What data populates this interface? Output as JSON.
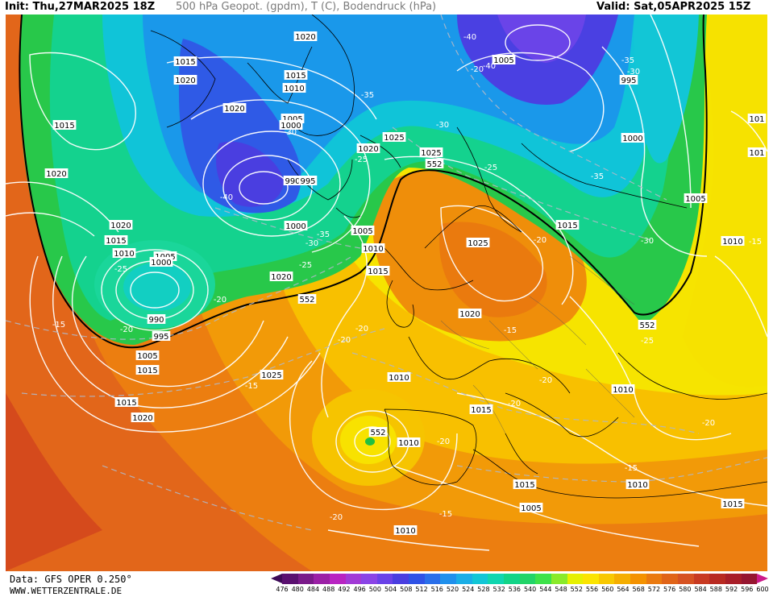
{
  "header": {
    "init": "Init: Thu,27MAR2025 18Z",
    "title": "500 hPa Geopot. (gpdm), T (C), Bodendruck (hPa)",
    "valid": "Valid: Sat,05APR2025 15Z"
  },
  "footer": {
    "data_source": "Data: GFS OPER 0.250°",
    "website": "WWW.WETTERZENTRALE.DE"
  },
  "legend": {
    "ticks": [
      "476",
      "480",
      "484",
      "488",
      "492",
      "496",
      "500",
      "504",
      "508",
      "512",
      "516",
      "520",
      "524",
      "528",
      "532",
      "536",
      "540",
      "544",
      "548",
      "552",
      "556",
      "560",
      "564",
      "568",
      "572",
      "576",
      "580",
      "584",
      "588",
      "592",
      "596",
      "600"
    ],
    "colors": [
      "#5a1070",
      "#7a1a8a",
      "#9b20a6",
      "#b824c2",
      "#a13ad6",
      "#8a44e6",
      "#6a42e8",
      "#4a3ee0",
      "#2f52e6",
      "#2a6fea",
      "#1f90ec",
      "#1aaee6",
      "#12c6d6",
      "#10d6b0",
      "#12d488",
      "#22d468",
      "#3ee24a",
      "#8aea2a",
      "#e6f000",
      "#fbe400",
      "#f8c800",
      "#f5ae00",
      "#f49200",
      "#ea7a10",
      "#e06418",
      "#d65222",
      "#c83a22",
      "#b82a22",
      "#a81e28",
      "#961630"
    ],
    "arrow_left_color": "#3d0a57",
    "arrow_right_color": "#cc1a8a"
  },
  "map": {
    "pressure_labels": [
      {
        "text": "1020"
      },
      {
        "text": "1015"
      },
      {
        "text": "1020"
      },
      {
        "text": "1015"
      },
      {
        "text": "1020"
      },
      {
        "text": "1020"
      },
      {
        "text": "1015"
      },
      {
        "text": "1020"
      },
      {
        "text": "1010"
      },
      {
        "text": "1015"
      },
      {
        "text": "1005"
      },
      {
        "text": "1000"
      },
      {
        "text": "1005"
      },
      {
        "text": "1000"
      },
      {
        "text": "990"
      },
      {
        "text": "995"
      },
      {
        "text": "990"
      },
      {
        "text": "995"
      },
      {
        "text": "1000"
      },
      {
        "text": "1005"
      },
      {
        "text": "1010"
      },
      {
        "text": "1015"
      },
      {
        "text": "1020"
      },
      {
        "text": "1025"
      },
      {
        "text": "1025"
      },
      {
        "text": "1025"
      },
      {
        "text": "1015"
      },
      {
        "text": "1020"
      },
      {
        "text": "1010"
      },
      {
        "text": "1005"
      },
      {
        "text": "1010"
      },
      {
        "text": "1015"
      },
      {
        "text": "1020"
      },
      {
        "text": "1005"
      },
      {
        "text": "995"
      },
      {
        "text": "1000"
      },
      {
        "text": "1005"
      },
      {
        "text": "1010"
      },
      {
        "text": "1015"
      },
      {
        "text": "1010"
      },
      {
        "text": "1015"
      },
      {
        "text": "1010"
      },
      {
        "text": "1005"
      },
      {
        "text": "1010"
      },
      {
        "text": "1015"
      },
      {
        "text": "1010"
      },
      {
        "text": "1010"
      },
      {
        "text": "101"
      },
      {
        "text": "101"
      },
      {
        "text": "1015"
      },
      {
        "text": "1025"
      },
      {
        "text": "1020"
      }
    ],
    "temp_labels": [
      {
        "text": "-40"
      },
      {
        "text": "-40"
      },
      {
        "text": "-35"
      },
      {
        "text": "-35"
      },
      {
        "text": "-30"
      },
      {
        "text": "-30"
      },
      {
        "text": "-30"
      },
      {
        "text": "-25"
      },
      {
        "text": "-25"
      },
      {
        "text": "-35"
      },
      {
        "text": "-40"
      },
      {
        "text": "-35"
      },
      {
        "text": "-30"
      },
      {
        "text": "-25"
      },
      {
        "text": "-25"
      },
      {
        "text": "-20"
      },
      {
        "text": "-15"
      },
      {
        "text": "-20"
      },
      {
        "text": "-20"
      },
      {
        "text": "-20"
      },
      {
        "text": "-15"
      },
      {
        "text": "-15"
      },
      {
        "text": "-20"
      },
      {
        "text": "-20"
      },
      {
        "text": "-20"
      },
      {
        "text": "-25"
      },
      {
        "text": "-20"
      },
      {
        "text": "-15"
      },
      {
        "text": "-15"
      },
      {
        "text": "-20"
      },
      {
        "text": "-30"
      },
      {
        "text": "-20"
      },
      {
        "text": "-15"
      },
      {
        "text": "-20"
      }
    ],
    "geopot_labels": [
      {
        "text": "552"
      },
      {
        "text": "552"
      },
      {
        "text": "552"
      },
      {
        "text": "552"
      }
    ]
  }
}
